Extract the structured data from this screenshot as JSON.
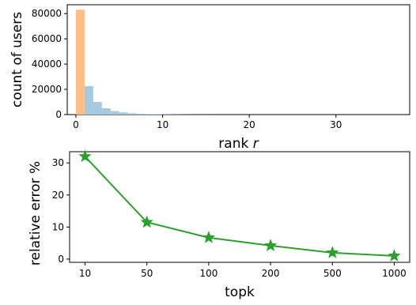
{
  "chart_data": [
    {
      "type": "bar",
      "xlabel": "rank",
      "xlabel_var": "r",
      "ylabel": "count of users",
      "xlim": [
        -1,
        38.5
      ],
      "ylim": [
        0,
        87000
      ],
      "xticks": [
        0,
        10,
        20,
        30
      ],
      "yticks": [
        0,
        20000,
        40000,
        60000,
        80000
      ],
      "grid": false,
      "series": [
        {
          "color": "#ffbe86",
          "bars": [
            {
              "x0": 0,
              "x1": 1,
              "value": 83000
            }
          ]
        },
        {
          "color": "#a6c8e0",
          "bars": [
            {
              "x0": 1,
              "x1": 2,
              "value": 22500
            },
            {
              "x0": 2,
              "x1": 3,
              "value": 10000
            },
            {
              "x0": 3,
              "x1": 4,
              "value": 5000
            },
            {
              "x0": 4,
              "x1": 5,
              "value": 2800
            },
            {
              "x0": 5,
              "x1": 6,
              "value": 1700
            },
            {
              "x0": 6,
              "x1": 7,
              "value": 1000
            },
            {
              "x0": 7,
              "x1": 8,
              "value": 650
            },
            {
              "x0": 8,
              "x1": 9,
              "value": 420
            },
            {
              "x0": 9,
              "x1": 10,
              "value": 280
            },
            {
              "x0": 10,
              "x1": 11,
              "value": 180
            },
            {
              "x0": 11,
              "x1": 12,
              "value": 120
            },
            {
              "x0": 12,
              "x1": 13,
              "value": 80
            },
            {
              "x0": 13,
              "x1": 14,
              "value": 50
            },
            {
              "x0": 14,
              "x1": 15,
              "value": 30
            },
            {
              "x0": 15,
              "x1": 16,
              "value": 20
            }
          ]
        }
      ]
    },
    {
      "type": "line",
      "xlabel": "topk",
      "ylabel": "relative error %",
      "categories": [
        "10",
        "50",
        "100",
        "200",
        "500",
        "1000"
      ],
      "ylim": [
        -1,
        33.5
      ],
      "yticks": [
        0,
        10,
        20,
        30
      ],
      "grid": false,
      "series": [
        {
          "color": "#2ca02c",
          "marker": "star",
          "values": [
            32.0,
            11.5,
            6.7,
            4.2,
            2.0,
            1.0
          ]
        }
      ]
    }
  ]
}
